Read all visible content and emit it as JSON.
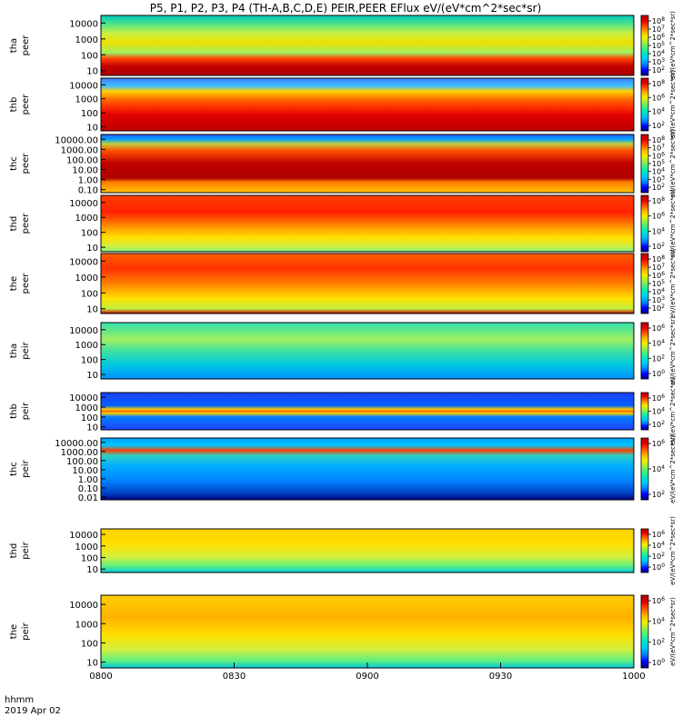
{
  "title": "P5, P1, P2, P3, P4 (TH-A,B,C,D,E) PEIR,PEER EFlux eV/(eV*cm^2*sec*sr)",
  "corner_label": {
    "line1": "hhmm",
    "line2": "2019 Apr 02"
  },
  "colors": {
    "colormap": [
      "#000080",
      "#0000ff",
      "#0080ff",
      "#00c8ff",
      "#00e8c0",
      "#40f080",
      "#a0f040",
      "#f0f000",
      "#ffb000",
      "#ff5000",
      "#e00000",
      "#b80000"
    ],
    "saturated": "#c00000",
    "panel_border": "#000000"
  },
  "chart_data": {
    "type": "heatmap",
    "x_axis": {
      "ticks": [
        "0800",
        "0830",
        "0900",
        "0930",
        "1000"
      ],
      "range": [
        "08:00",
        "10:00"
      ]
    },
    "panels": [
      {
        "id": "tha_peer",
        "ylabel": [
          "tha",
          "peer"
        ],
        "yticks": [
          "10000",
          "1000",
          "100",
          "10"
        ],
        "ylim": [
          5,
          30000
        ],
        "yscale": "log",
        "colorbar": {
          "ticks": [
            "10^8",
            "10^7",
            "10^6",
            "10^5",
            "10^4",
            "10^3",
            "10^2"
          ],
          "label": "eV/(eV*cm^2*sec*sr)"
        }
      },
      {
        "id": "thb_peer",
        "ylabel": [
          "thb",
          "peer"
        ],
        "yticks": [
          "10000",
          "1000",
          "100",
          "10"
        ],
        "ylim": [
          5,
          30000
        ],
        "yscale": "log",
        "colorbar": {
          "ticks": [
            "10^8",
            "10^6",
            "10^4",
            "10^2"
          ],
          "label": "eV/(eV*cm^2*sec*sr)"
        }
      },
      {
        "id": "thc_peer",
        "ylabel": [
          "thc",
          "peer"
        ],
        "yticks": [
          "10000.00",
          "1000.00",
          "100.00",
          "10.00",
          "1.00",
          "0.10"
        ],
        "ylim": [
          0.05,
          30000
        ],
        "yscale": "log",
        "colorbar": {
          "ticks": [
            "10^8",
            "10^7",
            "10^6",
            "10^5",
            "10^4",
            "10^3",
            "10^2"
          ],
          "label": "eV/(eV*cm^2*sec*sr)"
        }
      },
      {
        "id": "thd_peer",
        "ylabel": [
          "thd",
          "peer"
        ],
        "yticks": [
          "10000",
          "1000",
          "100",
          "10"
        ],
        "ylim": [
          5,
          30000
        ],
        "yscale": "log",
        "colorbar": {
          "ticks": [
            "10^8",
            "10^6",
            "10^4",
            "10^2"
          ],
          "label": "eV/(eV*cm^2*sec*sr)"
        }
      },
      {
        "id": "the_peer",
        "ylabel": [
          "the",
          "peer"
        ],
        "yticks": [
          "10000",
          "1000",
          "100",
          "10"
        ],
        "ylim": [
          5,
          30000
        ],
        "yscale": "log",
        "colorbar": {
          "ticks": [
            "10^8",
            "10^7",
            "10^6",
            "10^5",
            "10^4",
            "10^3",
            "10^2"
          ],
          "label": "eV/(eV*cm^2*sec*sr)"
        }
      },
      {
        "id": "tha_peir",
        "ylabel": [
          "tha",
          "peir"
        ],
        "yticks": [
          "10000",
          "1000",
          "100",
          "10"
        ],
        "ylim": [
          5,
          30000
        ],
        "yscale": "log",
        "colorbar": {
          "ticks": [
            "10^6",
            "10^4",
            "10^2",
            "10^0"
          ],
          "label": "eV/(eV*cm^2*sec*sr)"
        }
      },
      {
        "id": "thb_peir",
        "ylabel": [
          "thb",
          "peir"
        ],
        "yticks": [
          "10000",
          "1000",
          "100",
          "10"
        ],
        "ylim": [
          5,
          30000
        ],
        "yscale": "log",
        "colorbar": {
          "ticks": [
            "10^6",
            "10^4",
            "10^2"
          ],
          "label": "eV/(eV*cm^2*sec*sr)"
        }
      },
      {
        "id": "thc_peir",
        "ylabel": [
          "thc",
          "peir"
        ],
        "yticks": [
          "10000.00",
          "1000.00",
          "100.00",
          "10.00",
          "1.00",
          "0.10",
          "0.01"
        ],
        "ylim": [
          0.005,
          30000
        ],
        "yscale": "log",
        "colorbar": {
          "ticks": [
            "10^6",
            "10^4",
            "10^2"
          ],
          "label": "eV/(eV*cm^2*sec*sr)"
        }
      },
      {
        "id": "thd_peir",
        "ylabel": [
          "thd",
          "peir"
        ],
        "yticks": [
          "10000",
          "1000",
          "100",
          "10"
        ],
        "ylim": [
          5,
          30000
        ],
        "yscale": "log",
        "colorbar": {
          "ticks": [
            "10^6",
            "10^4",
            "10^2",
            "10^0"
          ],
          "label": "eV/(eV*cm^2*sec*sr)"
        }
      },
      {
        "id": "the_peir",
        "ylabel": [
          "the",
          "peir"
        ],
        "yticks": [
          "10000",
          "1000",
          "100",
          "10"
        ],
        "ylim": [
          5,
          30000
        ],
        "yscale": "log",
        "colorbar": {
          "ticks": [
            "10^6",
            "10^4",
            "10^2",
            "10^0"
          ],
          "label": "eV/(eV*cm^2*sec*sr)"
        }
      }
    ]
  }
}
